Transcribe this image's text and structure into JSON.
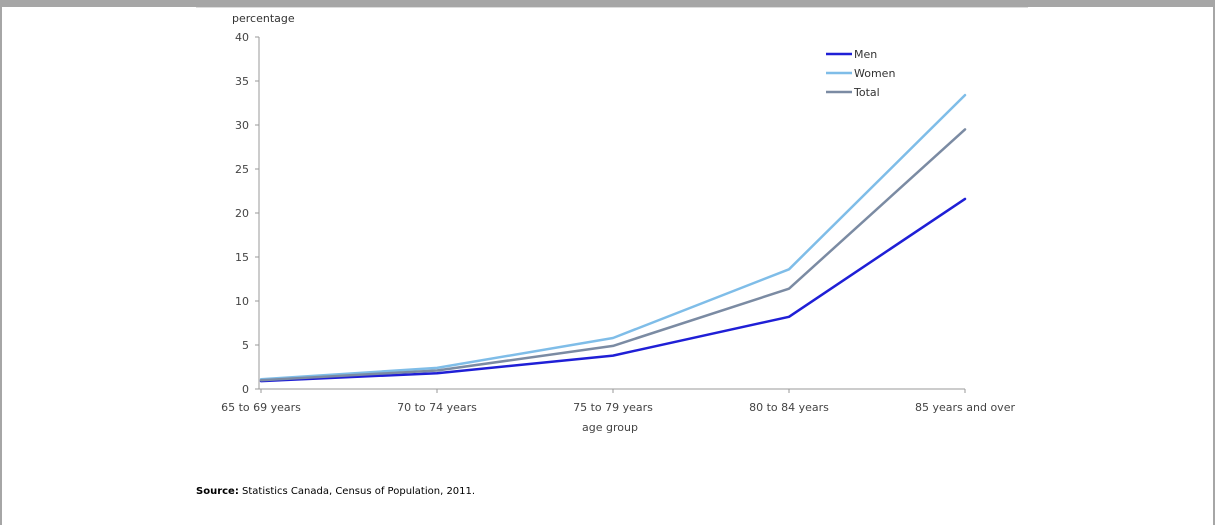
{
  "chart_data": {
    "type": "line",
    "title": "",
    "ylabel": "percentage",
    "xlabel": "age group",
    "ylim": [
      0,
      40
    ],
    "yticks": [
      0,
      5,
      10,
      15,
      20,
      25,
      30,
      35,
      40
    ],
    "categories": [
      "65 to 69 years",
      "70 to 74 years",
      "75 to 79 years",
      "80 to 84 years",
      "85 years and over"
    ],
    "series": [
      {
        "name": "Men",
        "values": [
          0.9,
          1.8,
          3.8,
          8.2,
          21.6
        ],
        "color": "#1f1fd6"
      },
      {
        "name": "Women",
        "values": [
          1.1,
          2.4,
          5.8,
          13.6,
          33.4
        ],
        "color": "#7fbde8"
      },
      {
        "name": "Total",
        "values": [
          1.0,
          2.1,
          4.9,
          11.4,
          29.5
        ],
        "color": "#7b8ba3"
      }
    ],
    "legend": "top-right",
    "grid": false
  },
  "source": {
    "label": "Source:",
    "text": " Statistics Canada, Census of Population, 2011."
  }
}
